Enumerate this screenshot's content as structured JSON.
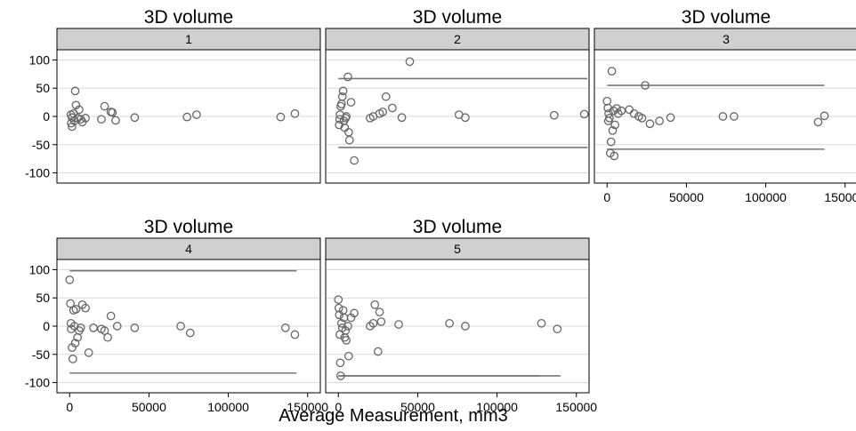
{
  "chart_data": {
    "type": "scatter",
    "panel_title": "3D volume",
    "xlabel": "Average Measurement, mm3",
    "ylabel": "",
    "xlim": [
      -8000,
      158000
    ],
    "ylim": [
      -118,
      118
    ],
    "x_ticks": [
      0,
      50000,
      100000,
      150000
    ],
    "x_tick_labels": [
      "0",
      "50000",
      "100000",
      "150000"
    ],
    "y_ticks": [
      100,
      50,
      0,
      -50,
      -100
    ],
    "y_tick_labels": [
      "100",
      "50",
      "0",
      "-50",
      "-100"
    ],
    "grid": true,
    "colors": {
      "marker": "#666666",
      "strip": "#d0d0d0",
      "limit_line": "#777777",
      "grid": "#d9d9d9"
    },
    "panels": [
      {
        "label": "1",
        "limits": [],
        "points": [
          [
            1500,
            -2
          ],
          [
            1000,
            -12
          ],
          [
            1500,
            -18
          ],
          [
            800,
            3
          ],
          [
            2500,
            5
          ],
          [
            3000,
            -8
          ],
          [
            3500,
            45
          ],
          [
            4000,
            20
          ],
          [
            5000,
            -3
          ],
          [
            6000,
            12
          ],
          [
            7000,
            -5
          ],
          [
            8000,
            -10
          ],
          [
            10000,
            -3
          ],
          [
            20000,
            -5
          ],
          [
            22000,
            18
          ],
          [
            26000,
            8
          ],
          [
            27000,
            7
          ],
          [
            29000,
            -7
          ],
          [
            41000,
            -2
          ],
          [
            74000,
            -1
          ],
          [
            80000,
            3
          ],
          [
            133000,
            -1
          ],
          [
            142000,
            5
          ]
        ]
      },
      {
        "label": "2",
        "limits": [
          [
            0,
            157000,
            67
          ],
          [
            0,
            157000,
            -55
          ]
        ],
        "points": [
          [
            500,
            -15
          ],
          [
            800,
            -5
          ],
          [
            1000,
            3
          ],
          [
            1500,
            18
          ],
          [
            2000,
            22
          ],
          [
            2500,
            35
          ],
          [
            3000,
            45
          ],
          [
            3500,
            -8
          ],
          [
            4000,
            -20
          ],
          [
            4500,
            -3
          ],
          [
            5000,
            0
          ],
          [
            6000,
            70
          ],
          [
            6500,
            -28
          ],
          [
            7000,
            -42
          ],
          [
            8000,
            25
          ],
          [
            10000,
            -78
          ],
          [
            20000,
            -3
          ],
          [
            22000,
            0
          ],
          [
            26000,
            5
          ],
          [
            28000,
            8
          ],
          [
            30000,
            35
          ],
          [
            34000,
            15
          ],
          [
            40000,
            -2
          ],
          [
            45000,
            97
          ],
          [
            76000,
            3
          ],
          [
            80000,
            -2
          ],
          [
            136000,
            2
          ],
          [
            155000,
            4
          ]
        ]
      },
      {
        "label": "3",
        "limits": [
          [
            0,
            137000,
            55
          ],
          [
            0,
            137000,
            -58
          ]
        ],
        "points": [
          [
            0,
            27
          ],
          [
            500,
            15
          ],
          [
            800,
            -8
          ],
          [
            1000,
            5
          ],
          [
            1500,
            -3
          ],
          [
            2000,
            -65
          ],
          [
            2500,
            -45
          ],
          [
            3000,
            80
          ],
          [
            3500,
            -25
          ],
          [
            4000,
            10
          ],
          [
            4500,
            -70
          ],
          [
            5000,
            -15
          ],
          [
            6000,
            14
          ],
          [
            7000,
            5
          ],
          [
            9000,
            10
          ],
          [
            14000,
            12
          ],
          [
            17000,
            5
          ],
          [
            20000,
            0
          ],
          [
            22000,
            -3
          ],
          [
            24000,
            55
          ],
          [
            27000,
            -13
          ],
          [
            33000,
            -8
          ],
          [
            40000,
            -2
          ],
          [
            73000,
            0
          ],
          [
            80000,
            0
          ],
          [
            133000,
            -10
          ],
          [
            137000,
            1
          ]
        ]
      },
      {
        "label": "4",
        "limits": [
          [
            0,
            143000,
            98
          ],
          [
            0,
            143000,
            -83
          ]
        ],
        "points": [
          [
            0,
            82
          ],
          [
            500,
            40
          ],
          [
            800,
            5
          ],
          [
            1000,
            -5
          ],
          [
            1500,
            -38
          ],
          [
            2000,
            -58
          ],
          [
            2500,
            28
          ],
          [
            3000,
            0
          ],
          [
            3500,
            -30
          ],
          [
            4000,
            30
          ],
          [
            5000,
            -20
          ],
          [
            6000,
            -8
          ],
          [
            7000,
            -3
          ],
          [
            8000,
            38
          ],
          [
            10000,
            32
          ],
          [
            12000,
            -47
          ],
          [
            15000,
            -3
          ],
          [
            20000,
            -5
          ],
          [
            22000,
            -8
          ],
          [
            24000,
            -20
          ],
          [
            26000,
            18
          ],
          [
            30000,
            0
          ],
          [
            41000,
            -3
          ],
          [
            70000,
            0
          ],
          [
            76000,
            -12
          ],
          [
            136000,
            -3
          ],
          [
            142000,
            -15
          ]
        ]
      },
      {
        "label": "5",
        "limits": [
          [
            0,
            140000,
            -88
          ],
          [
            0,
            127000,
            -88
          ]
        ],
        "points": [
          [
            0,
            47
          ],
          [
            300,
            32
          ],
          [
            600,
            20
          ],
          [
            900,
            -15
          ],
          [
            1200,
            -65
          ],
          [
            1500,
            -88
          ],
          [
            2000,
            5
          ],
          [
            2500,
            -3
          ],
          [
            3000,
            28
          ],
          [
            3500,
            15
          ],
          [
            4000,
            -20
          ],
          [
            4500,
            -8
          ],
          [
            5000,
            -25
          ],
          [
            6000,
            0
          ],
          [
            6500,
            -53
          ],
          [
            8000,
            15
          ],
          [
            10000,
            23
          ],
          [
            20000,
            0
          ],
          [
            22000,
            5
          ],
          [
            23000,
            38
          ],
          [
            25000,
            -45
          ],
          [
            26000,
            25
          ],
          [
            27000,
            8
          ],
          [
            38000,
            3
          ],
          [
            70000,
            5
          ],
          [
            80000,
            0
          ],
          [
            128000,
            5
          ],
          [
            138000,
            -5
          ]
        ]
      }
    ]
  }
}
